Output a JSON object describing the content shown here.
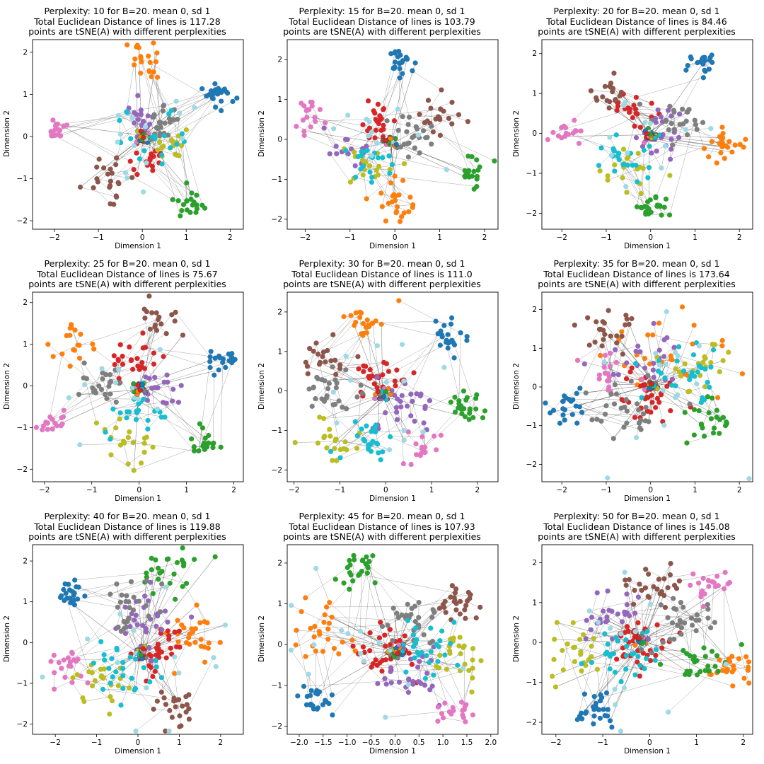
{
  "chart_data": [
    {
      "type": "scatter",
      "title": [
        "Perplexity: 10 for B=20. mean 0, sd 1",
        "Total Euclidean Distance of lines is 117.28",
        "points are tSNE(A) with different perplexities"
      ],
      "xlabel": "Dimension 1",
      "ylabel": "Dimension 2",
      "xlim": [
        -2.5,
        2.3
      ],
      "ylim": [
        -2.2,
        2.3
      ],
      "xticks": [
        -2,
        -1,
        0,
        1,
        2
      ],
      "yticks": [
        -2,
        -1,
        0,
        1,
        2
      ],
      "center": [
        0.0,
        -0.05
      ],
      "clusters": [
        {
          "color": "#1f77b4",
          "cx": 1.75,
          "cy": 0.95,
          "r": 0.28,
          "n": 24
        },
        {
          "color": "#ff7f0e",
          "cx": 0.05,
          "cy": 1.8,
          "r": 0.45,
          "n": 20
        },
        {
          "color": "#2ca02c",
          "cx": 1.1,
          "cy": -1.6,
          "r": 0.3,
          "n": 20
        },
        {
          "color": "#d62728",
          "cx": 0.1,
          "cy": -0.5,
          "r": 0.4,
          "n": 22
        },
        {
          "color": "#9467bd",
          "cx": 0.0,
          "cy": 0.5,
          "r": 0.4,
          "n": 20
        },
        {
          "color": "#8c564b",
          "cx": -0.8,
          "cy": -0.9,
          "r": 0.5,
          "n": 22
        },
        {
          "color": "#e377c2",
          "cx": -1.95,
          "cy": 0.15,
          "r": 0.3,
          "n": 18
        },
        {
          "color": "#7f7f7f",
          "cx": 0.5,
          "cy": 0.3,
          "r": 0.4,
          "n": 22
        },
        {
          "color": "#bcbd22",
          "cx": 0.6,
          "cy": -0.2,
          "r": 0.5,
          "n": 16
        },
        {
          "color": "#17becf",
          "cx": 0.4,
          "cy": 0.0,
          "r": 0.7,
          "n": 20
        },
        {
          "color": "#9edae5",
          "cx": 0.3,
          "cy": 0.0,
          "r": 1.3,
          "n": 14
        }
      ]
    },
    {
      "type": "scatter",
      "title": [
        "Perplexity: 15 for B=20. mean 0, sd 1",
        "Total Euclidean Distance of lines is 103.79",
        "points are tSNE(A) with different perplexities"
      ],
      "xlabel": "Dimension 1",
      "ylabel": "Dimension 2",
      "xlim": [
        -2.4,
        2.3
      ],
      "ylim": [
        -2.25,
        2.5
      ],
      "xticks": [
        -2,
        -1,
        0,
        1,
        2
      ],
      "yticks": [
        -2,
        -1,
        0,
        1,
        2
      ],
      "center": [
        -0.1,
        -0.05
      ],
      "clusters": [
        {
          "color": "#1f77b4",
          "cx": 0.15,
          "cy": 1.9,
          "r": 0.3,
          "n": 22
        },
        {
          "color": "#ff7f0e",
          "cx": 0.1,
          "cy": -1.5,
          "r": 0.5,
          "n": 24
        },
        {
          "color": "#2ca02c",
          "cx": 1.7,
          "cy": -0.8,
          "r": 0.35,
          "n": 20
        },
        {
          "color": "#d62728",
          "cx": -0.4,
          "cy": 0.5,
          "r": 0.45,
          "n": 22
        },
        {
          "color": "#9467bd",
          "cx": -0.8,
          "cy": -0.1,
          "r": 0.5,
          "n": 16
        },
        {
          "color": "#8c564b",
          "cx": 1.0,
          "cy": 0.6,
          "r": 0.5,
          "n": 20
        },
        {
          "color": "#e377c2",
          "cx": -1.85,
          "cy": 0.6,
          "r": 0.35,
          "n": 18
        },
        {
          "color": "#7f7f7f",
          "cx": 0.4,
          "cy": 0.0,
          "r": 0.5,
          "n": 24
        },
        {
          "color": "#bcbd22",
          "cx": -0.7,
          "cy": -0.6,
          "r": 0.5,
          "n": 18
        },
        {
          "color": "#17becf",
          "cx": -0.5,
          "cy": -0.6,
          "r": 0.6,
          "n": 20
        },
        {
          "color": "#9edae5",
          "cx": 0.0,
          "cy": 0.0,
          "r": 1.3,
          "n": 12
        }
      ]
    },
    {
      "type": "scatter",
      "title": [
        "Perplexity: 20 for B=20. mean 0, sd 1",
        "Total Euclidean Distance of lines is 84.46",
        "points are tSNE(A) with different perplexities"
      ],
      "xlabel": "Dimension 1",
      "ylabel": "Dimension 2",
      "xlim": [
        -2.45,
        2.3
      ],
      "ylim": [
        -2.4,
        2.35
      ],
      "xticks": [
        -2,
        -1,
        0,
        1,
        2
      ],
      "yticks": [
        -2,
        -1,
        0,
        1,
        2
      ],
      "center": [
        0.0,
        -0.05
      ],
      "clusters": [
        {
          "color": "#1f77b4",
          "cx": 1.15,
          "cy": 1.75,
          "r": 0.3,
          "n": 20
        },
        {
          "color": "#ff7f0e",
          "cx": 1.7,
          "cy": -0.3,
          "r": 0.4,
          "n": 22
        },
        {
          "color": "#2ca02c",
          "cx": 0.0,
          "cy": -1.9,
          "r": 0.3,
          "n": 22
        },
        {
          "color": "#d62728",
          "cx": -0.4,
          "cy": 0.6,
          "r": 0.4,
          "n": 22
        },
        {
          "color": "#9467bd",
          "cx": 0.3,
          "cy": -0.1,
          "r": 0.6,
          "n": 22
        },
        {
          "color": "#8c564b",
          "cx": -1.0,
          "cy": 1.0,
          "r": 0.4,
          "n": 18
        },
        {
          "color": "#e377c2",
          "cx": -1.9,
          "cy": 0.0,
          "r": 0.3,
          "n": 16
        },
        {
          "color": "#7f7f7f",
          "cx": 0.6,
          "cy": 0.4,
          "r": 0.45,
          "n": 24
        },
        {
          "color": "#bcbd22",
          "cx": -0.4,
          "cy": -1.0,
          "r": 0.6,
          "n": 18
        },
        {
          "color": "#17becf",
          "cx": -0.5,
          "cy": -0.6,
          "r": 0.6,
          "n": 22
        },
        {
          "color": "#9edae5",
          "cx": 0.0,
          "cy": 0.0,
          "r": 1.3,
          "n": 12
        }
      ]
    },
    {
      "type": "scatter",
      "title": [
        "Perplexity: 25 for B=20. mean 0, sd 1",
        "Total Euclidean Distance of lines is 75.67",
        "points are tSNE(A) with different perplexities"
      ],
      "xlabel": "Dimension 1",
      "ylabel": "Dimension 2",
      "xlim": [
        -2.25,
        2.2
      ],
      "ylim": [
        -2.3,
        2.25
      ],
      "xticks": [
        -2,
        -1,
        0,
        1,
        2
      ],
      "yticks": [
        -2,
        -1,
        0,
        1,
        2
      ],
      "center": [
        0.0,
        -0.05
      ],
      "clusters": [
        {
          "color": "#1f77b4",
          "cx": 1.8,
          "cy": 0.7,
          "r": 0.3,
          "n": 20
        },
        {
          "color": "#ff7f0e",
          "cx": -1.3,
          "cy": 1.1,
          "r": 0.45,
          "n": 18
        },
        {
          "color": "#2ca02c",
          "cx": 1.35,
          "cy": -1.35,
          "r": 0.3,
          "n": 20
        },
        {
          "color": "#d62728",
          "cx": -0.1,
          "cy": 0.7,
          "r": 0.45,
          "n": 24
        },
        {
          "color": "#9467bd",
          "cx": 0.5,
          "cy": -0.1,
          "r": 0.5,
          "n": 18
        },
        {
          "color": "#8c564b",
          "cx": 0.4,
          "cy": 1.6,
          "r": 0.45,
          "n": 18
        },
        {
          "color": "#e377c2",
          "cx": -1.8,
          "cy": -0.9,
          "r": 0.3,
          "n": 16
        },
        {
          "color": "#7f7f7f",
          "cx": -0.75,
          "cy": 0.0,
          "r": 0.45,
          "n": 24
        },
        {
          "color": "#bcbd22",
          "cx": -0.3,
          "cy": -1.4,
          "r": 0.55,
          "n": 20
        },
        {
          "color": "#17becf",
          "cx": 0.0,
          "cy": -0.6,
          "r": 0.55,
          "n": 22
        },
        {
          "color": "#9edae5",
          "cx": 0.0,
          "cy": 0.0,
          "r": 1.3,
          "n": 10
        }
      ]
    },
    {
      "type": "scatter",
      "title": [
        "Perplexity: 30 for B=20. mean 0, sd 1",
        "Total Euclidean Distance of lines is 111.0",
        "points are tSNE(A) with different perplexities"
      ],
      "xlabel": "Dimension 1",
      "ylabel": "Dimension 2",
      "xlim": [
        -2.15,
        2.45
      ],
      "ylim": [
        -2.3,
        2.5
      ],
      "xticks": [
        -2,
        -1,
        0,
        1,
        2
      ],
      "yticks": [
        -2,
        -1,
        0,
        1,
        2
      ],
      "center": [
        -0.05,
        -0.1
      ],
      "clusters": [
        {
          "color": "#1f77b4",
          "cx": 1.4,
          "cy": 1.3,
          "r": 0.35,
          "n": 22
        },
        {
          "color": "#ff7f0e",
          "cx": -0.4,
          "cy": 1.8,
          "r": 0.45,
          "n": 22
        },
        {
          "color": "#2ca02c",
          "cx": 1.8,
          "cy": -0.4,
          "r": 0.4,
          "n": 24
        },
        {
          "color": "#d62728",
          "cx": -0.2,
          "cy": 0.3,
          "r": 0.5,
          "n": 28
        },
        {
          "color": "#9467bd",
          "cx": 0.4,
          "cy": -0.5,
          "r": 0.6,
          "n": 28
        },
        {
          "color": "#8c564b",
          "cx": -1.4,
          "cy": 0.8,
          "r": 0.5,
          "n": 20
        },
        {
          "color": "#e377c2",
          "cx": 0.8,
          "cy": -1.4,
          "r": 0.45,
          "n": 18
        },
        {
          "color": "#7f7f7f",
          "cx": -1.2,
          "cy": 0.0,
          "r": 0.6,
          "n": 28
        },
        {
          "color": "#bcbd22",
          "cx": -1.1,
          "cy": -1.2,
          "r": 0.6,
          "n": 20
        },
        {
          "color": "#17becf",
          "cx": -0.4,
          "cy": -1.1,
          "r": 0.6,
          "n": 26
        },
        {
          "color": "#9edae5",
          "cx": 0.0,
          "cy": 0.0,
          "r": 1.4,
          "n": 14
        }
      ]
    },
    {
      "type": "scatter",
      "title": [
        "Perplexity: 35 for B=20. mean 0, sd 1",
        "Total Euclidean Distance of lines is 173.64",
        "points are tSNE(A) with different perplexities"
      ],
      "xlabel": "Dimension 1",
      "ylabel": "Dimension 2",
      "xlim": [
        -2.45,
        2.3
      ],
      "ylim": [
        -2.45,
        2.45
      ],
      "xticks": [
        -2,
        -1,
        0,
        1,
        2
      ],
      "yticks": [
        -2,
        -1,
        0,
        1,
        2
      ],
      "center": [
        0.05,
        0.05
      ],
      "clusters": [
        {
          "color": "#1f77b4",
          "cx": -1.9,
          "cy": -0.6,
          "r": 0.4,
          "n": 22
        },
        {
          "color": "#ff7f0e",
          "cx": 0.4,
          "cy": 0.9,
          "r": 1.3,
          "n": 26
        },
        {
          "color": "#2ca02c",
          "cx": 1.3,
          "cy": -0.9,
          "r": 0.6,
          "n": 24
        },
        {
          "color": "#d62728",
          "cx": 0.0,
          "cy": -0.2,
          "r": 0.6,
          "n": 34
        },
        {
          "color": "#9467bd",
          "cx": -0.2,
          "cy": 0.8,
          "r": 0.8,
          "n": 24
        },
        {
          "color": "#8c564b",
          "cx": -0.9,
          "cy": 1.4,
          "r": 0.6,
          "n": 24
        },
        {
          "color": "#e377c2",
          "cx": -1.1,
          "cy": 0.3,
          "r": 0.5,
          "n": 18
        },
        {
          "color": "#7f7f7f",
          "cx": -0.6,
          "cy": -0.7,
          "r": 0.8,
          "n": 30
        },
        {
          "color": "#bcbd22",
          "cx": 1.2,
          "cy": 0.6,
          "r": 0.6,
          "n": 22
        },
        {
          "color": "#17becf",
          "cx": 0.7,
          "cy": 0.3,
          "r": 0.8,
          "n": 28
        },
        {
          "color": "#9edae5",
          "cx": 0.0,
          "cy": 0.0,
          "r": 2.0,
          "n": 16
        }
      ]
    },
    {
      "type": "scatter",
      "title": [
        "Perplexity: 40 for B=20. mean 0, sd 1",
        "Total Euclidean Distance of lines is 119.88",
        "points are tSNE(A) with different perplexities"
      ],
      "xlabel": "Dimension 1",
      "ylabel": "Dimension 2",
      "xlim": [
        -2.55,
        2.55
      ],
      "ylim": [
        -2.25,
        2.4
      ],
      "xticks": [
        -2,
        -1,
        0,
        1,
        2
      ],
      "yticks": [
        -2,
        -1,
        0,
        1,
        2
      ],
      "center": [
        0.1,
        -0.25
      ],
      "clusters": [
        {
          "color": "#1f77b4",
          "cx": -1.7,
          "cy": 1.2,
          "r": 0.35,
          "n": 22
        },
        {
          "color": "#ff7f0e",
          "cx": 1.4,
          "cy": 0.2,
          "r": 0.6,
          "n": 26
        },
        {
          "color": "#2ca02c",
          "cx": 0.8,
          "cy": 1.8,
          "r": 0.55,
          "n": 26
        },
        {
          "color": "#d62728",
          "cx": 0.4,
          "cy": -0.3,
          "r": 0.6,
          "n": 34
        },
        {
          "color": "#9467bd",
          "cx": 0.1,
          "cy": 0.5,
          "r": 0.6,
          "n": 28
        },
        {
          "color": "#8c564b",
          "cx": 0.9,
          "cy": -1.6,
          "r": 0.45,
          "n": 24
        },
        {
          "color": "#e377c2",
          "cx": -1.6,
          "cy": -0.5,
          "r": 0.45,
          "n": 20
        },
        {
          "color": "#7f7f7f",
          "cx": -0.2,
          "cy": 0.9,
          "r": 0.6,
          "n": 26
        },
        {
          "color": "#bcbd22",
          "cx": -0.9,
          "cy": -1.0,
          "r": 0.6,
          "n": 22
        },
        {
          "color": "#17becf",
          "cx": -0.4,
          "cy": -0.7,
          "r": 0.7,
          "n": 28
        },
        {
          "color": "#9edae5",
          "cx": 0.0,
          "cy": 0.0,
          "r": 2.0,
          "n": 14
        }
      ]
    },
    {
      "type": "scatter",
      "title": [
        "Perplexity: 45 for B=20. mean 0, sd 1",
        "Total Euclidean Distance of lines is 107.93",
        "points are tSNE(A) with different perplexities"
      ],
      "xlabel": "Dimension 1",
      "ylabel": "Dimension 2",
      "xlim": [
        -2.25,
        2.15
      ],
      "ylim": [
        -2.2,
        2.45
      ],
      "xticks": [
        -2.0,
        -1.5,
        -1.0,
        -0.5,
        0.0,
        0.5,
        1.0,
        1.5,
        2.0
      ],
      "xticklabels": [
        "−2.0",
        "−1.5",
        "−1.0",
        "−0.5",
        "0.0",
        "0.5",
        "1.0",
        "1.5",
        "2.0"
      ],
      "yticks": [
        -2,
        -1,
        0,
        1,
        2
      ],
      "center": [
        0.05,
        -0.15
      ],
      "clusters": [
        {
          "color": "#1f77b4",
          "cx": -1.7,
          "cy": -1.3,
          "r": 0.35,
          "n": 22
        },
        {
          "color": "#ff7f0e",
          "cx": -1.4,
          "cy": 0.3,
          "r": 0.6,
          "n": 26
        },
        {
          "color": "#2ca02c",
          "cx": -0.8,
          "cy": 1.9,
          "r": 0.4,
          "n": 24
        },
        {
          "color": "#d62728",
          "cx": -0.2,
          "cy": -0.2,
          "r": 0.6,
          "n": 34
        },
        {
          "color": "#9467bd",
          "cx": 0.4,
          "cy": -0.8,
          "r": 0.6,
          "n": 26
        },
        {
          "color": "#8c564b",
          "cx": 1.2,
          "cy": 1.1,
          "r": 0.5,
          "n": 26
        },
        {
          "color": "#e377c2",
          "cx": 1.2,
          "cy": -1.5,
          "r": 0.45,
          "n": 18
        },
        {
          "color": "#7f7f7f",
          "cx": 0.3,
          "cy": 0.6,
          "r": 0.6,
          "n": 28
        },
        {
          "color": "#bcbd22",
          "cx": 1.3,
          "cy": -0.3,
          "r": 0.6,
          "n": 26
        },
        {
          "color": "#17becf",
          "cx": 0.6,
          "cy": -0.2,
          "r": 0.7,
          "n": 28
        },
        {
          "color": "#9edae5",
          "cx": 0.0,
          "cy": 0.0,
          "r": 2.0,
          "n": 14
        }
      ]
    },
    {
      "type": "scatter",
      "title": [
        "Perplexity: 50 for B=20. mean 0, sd 1",
        "Total Euclidean Distance of lines is 145.08",
        "points are tSNE(A) with different perplexities"
      ],
      "xlabel": "Dimension 1",
      "ylabel": "Dimension 2",
      "xlim": [
        -2.3,
        2.2
      ],
      "ylim": [
        -2.3,
        2.45
      ],
      "xticks": [
        -2,
        -1,
        0,
        1,
        2
      ],
      "yticks": [
        -2,
        -1,
        0,
        1,
        2
      ],
      "center": [
        -0.15,
        0.05
      ],
      "clusters": [
        {
          "color": "#1f77b4",
          "cx": -1.1,
          "cy": -1.7,
          "r": 0.45,
          "n": 26
        },
        {
          "color": "#ff7f0e",
          "cx": 1.8,
          "cy": -0.6,
          "r": 0.45,
          "n": 24
        },
        {
          "color": "#2ca02c",
          "cx": 1.1,
          "cy": -0.5,
          "r": 0.5,
          "n": 26
        },
        {
          "color": "#d62728",
          "cx": -0.2,
          "cy": 0.0,
          "r": 0.6,
          "n": 34
        },
        {
          "color": "#9467bd",
          "cx": -0.9,
          "cy": 0.6,
          "r": 0.6,
          "n": 26
        },
        {
          "color": "#8c564b",
          "cx": 0.0,
          "cy": 1.4,
          "r": 0.6,
          "n": 26
        },
        {
          "color": "#e377c2",
          "cx": 1.3,
          "cy": 1.4,
          "r": 0.45,
          "n": 20
        },
        {
          "color": "#7f7f7f",
          "cx": 0.7,
          "cy": 0.5,
          "r": 0.6,
          "n": 30
        },
        {
          "color": "#bcbd22",
          "cx": -1.6,
          "cy": -0.2,
          "r": 0.6,
          "n": 24
        },
        {
          "color": "#17becf",
          "cx": -0.6,
          "cy": -0.4,
          "r": 0.7,
          "n": 28
        },
        {
          "color": "#9edae5",
          "cx": 0.0,
          "cy": 0.0,
          "r": 2.0,
          "n": 14
        }
      ]
    }
  ]
}
